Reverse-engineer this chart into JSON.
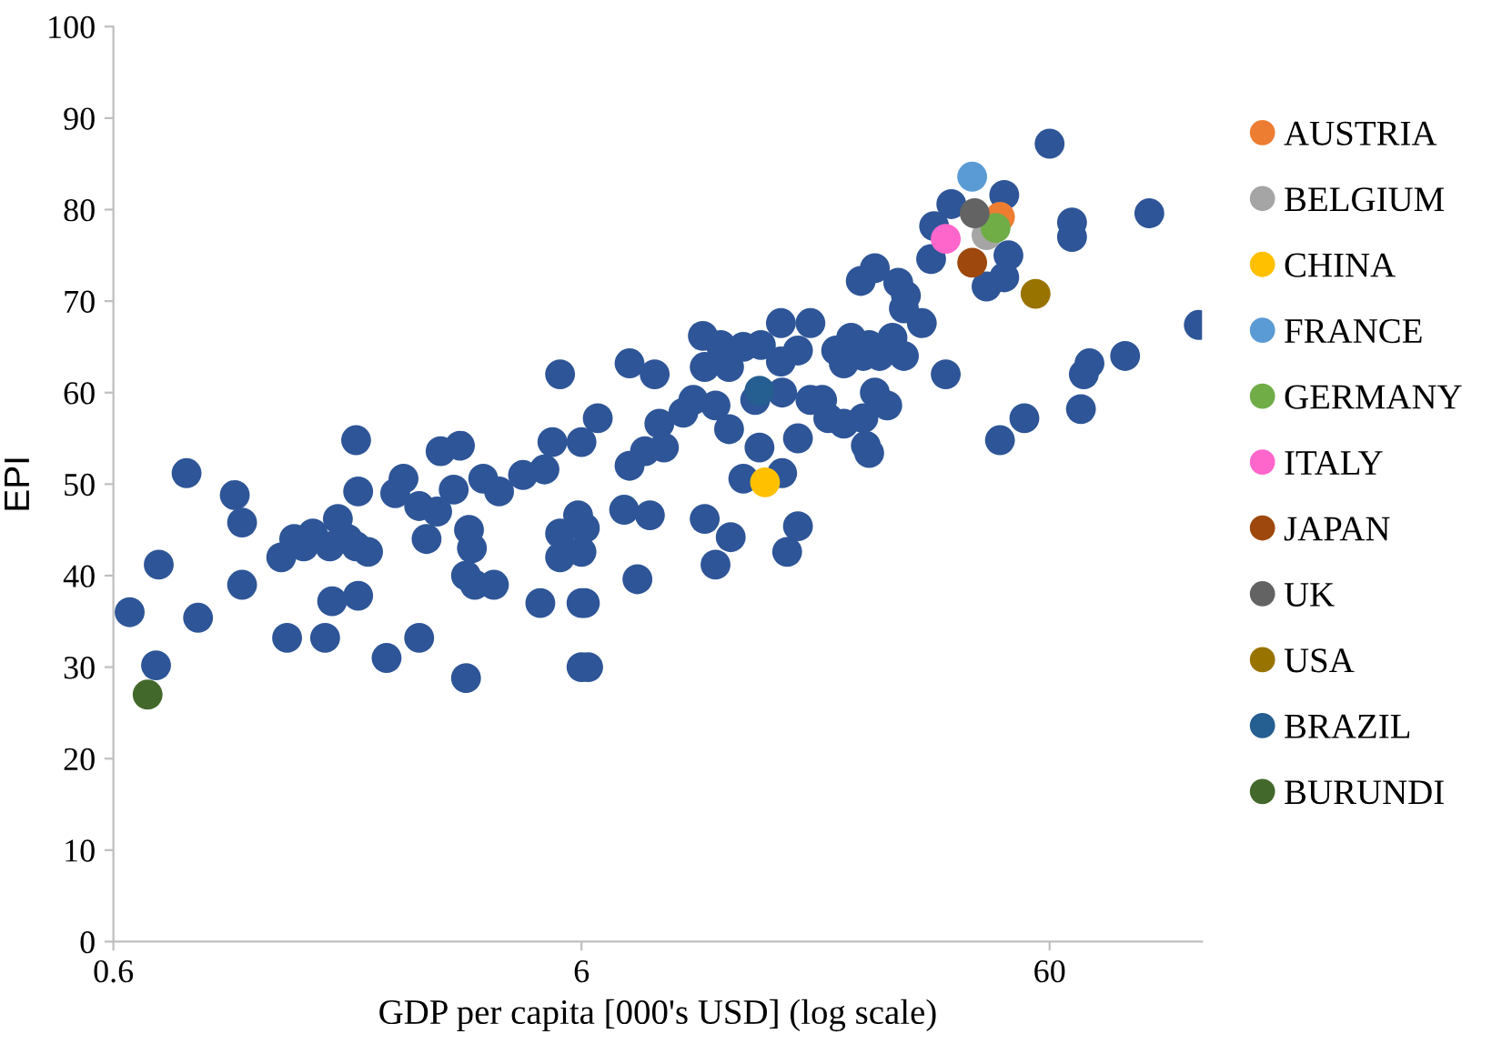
{
  "chart_data": {
    "type": "scatter",
    "xlabel": "GDP per capita [000's USD] (log scale)",
    "ylabel": "EPI",
    "log": "x",
    "xlim": [
      0.6,
      127
    ],
    "xticks": [
      0.6,
      6,
      60
    ],
    "ylim": [
      0,
      100
    ],
    "yticks": [
      0,
      10,
      20,
      30,
      40,
      50,
      60,
      70,
      80,
      90,
      100
    ],
    "grid": false,
    "legend": "right",
    "marker": "circle",
    "series": [
      {
        "color": "#2e5597",
        "x": [
          0.65,
          0.86,
          0.75,
          0.91,
          0.74,
          1.09,
          1.13,
          1.13,
          1.98,
          2.0,
          1.37,
          1.46,
          1.53,
          1.6,
          1.74,
          1.81,
          1.9,
          1.98,
          2.1,
          1.76,
          2.0,
          1.41,
          1.7,
          2.3,
          2.7,
          3.4,
          2.4,
          2.5,
          2.7,
          2.95,
          2.8,
          3.0,
          3.3,
          3.2,
          3.45,
          3.5,
          3.4,
          3.55,
          3.9,
          3.7,
          4.0,
          4.5,
          5.0,
          5.4,
          5.2,
          4.9,
          5.4,
          5.4,
          5.9,
          6.0,
          6.0,
          60,
          37,
          48,
          34,
          33.5,
          49,
          44,
          48,
          67,
          67,
          98,
          125,
          87,
          73,
          71,
          70,
          53,
          47,
          36,
          23.7,
          25.4,
          28.5,
          29.6,
          32,
          29.3,
          27.7,
          29.3,
          26,
          24.7,
          22.6,
          21,
          21.8,
          24,
          25.4,
          27,
          24,
          21.8,
          24.3,
          24.7,
          19.6,
          20.2,
          18.5,
          17.4,
          18.5,
          16,
          17.4,
          16,
          13.3,
          14.5,
          10.9,
          11.9,
          11.0,
          12.4,
          10.4,
          9.9,
          11.6,
          12.4,
          14.1,
          16.1,
          14.4,
          13.3,
          16.1,
          8.8,
          8.2,
          7.6,
          9,
          7.6,
          8.6,
          6.5,
          6,
          7.4,
          8.4,
          6.1,
          6,
          11.0,
          12.5,
          11.6,
          17.4,
          16.5,
          7.9,
          6.1,
          6.2
        ],
        "values": [
          36,
          51.2,
          41.2,
          35.4,
          30.2,
          48.8,
          45.8,
          39,
          54.8,
          49.2,
          42,
          44,
          43.2,
          44.6,
          43.2,
          46.2,
          44,
          43.2,
          42.6,
          37.2,
          37.8,
          33.2,
          33.2,
          31,
          33.2,
          28.8,
          49,
          50.6,
          47.6,
          47,
          44,
          53.6,
          54.2,
          49.4,
          45,
          43,
          40,
          39,
          39,
          50.6,
          49.2,
          51,
          51.6,
          62,
          54.6,
          37,
          44.6,
          42,
          46.6,
          37,
          30,
          87.2,
          80.6,
          81.6,
          78.2,
          74.6,
          75,
          71.6,
          72.6,
          78.6,
          77,
          79.6,
          67.4,
          64,
          63.2,
          62,
          58.2,
          57.2,
          54.8,
          62,
          72.2,
          73.6,
          72,
          70.6,
          67.6,
          69.2,
          66,
          64,
          64,
          65.2,
          66,
          64.6,
          63.2,
          64,
          60,
          58.6,
          57.2,
          56.6,
          54.2,
          53.4,
          59.2,
          57.2,
          59.2,
          55,
          67.6,
          67.6,
          64.6,
          63.4,
          65,
          65.2,
          66.2,
          65.2,
          62.8,
          62.8,
          59.2,
          57.8,
          58.6,
          56,
          59.2,
          60,
          54,
          50.6,
          51.2,
          56.6,
          53.6,
          52,
          54,
          63.2,
          62,
          57.2,
          54.6,
          47.2,
          46.6,
          45.2,
          42.6,
          46.2,
          44.2,
          41.2,
          45.4,
          42.6,
          39.6,
          37,
          30
        ]
      },
      {
        "name": "AUSTRIA",
        "color": "#ed7d31",
        "x": [
          47
        ],
        "values": [
          79.2
        ]
      },
      {
        "name": "BELGIUM",
        "color": "#a5a5a5",
        "x": [
          44
        ],
        "values": [
          77.2
        ]
      },
      {
        "name": "CHINA",
        "color": "#ffc000",
        "x": [
          14.8
        ],
        "values": [
          50.2
        ]
      },
      {
        "name": "FRANCE",
        "color": "#5b9bd5",
        "x": [
          41
        ],
        "values": [
          83.6
        ]
      },
      {
        "name": "GERMANY",
        "color": "#70ad47",
        "x": [
          46
        ],
        "values": [
          78
        ]
      },
      {
        "name": "ITALY",
        "color": "#ff66cc",
        "x": [
          36
        ],
        "values": [
          76.8
        ]
      },
      {
        "name": "JAPAN",
        "color": "#9e480e",
        "x": [
          41
        ],
        "values": [
          74.2
        ]
      },
      {
        "name": "UK",
        "color": "#636363",
        "x": [
          41.5
        ],
        "values": [
          79.6
        ]
      },
      {
        "name": "USA",
        "color": "#997300",
        "x": [
          56
        ],
        "values": [
          70.8
        ]
      },
      {
        "name": "BRAZIL",
        "color": "#255e91",
        "x": [
          14.4
        ],
        "values": [
          60.2
        ]
      },
      {
        "name": "BURUNDI",
        "color": "#43682b",
        "x": [
          0.71
        ],
        "values": [
          27
        ]
      }
    ]
  }
}
